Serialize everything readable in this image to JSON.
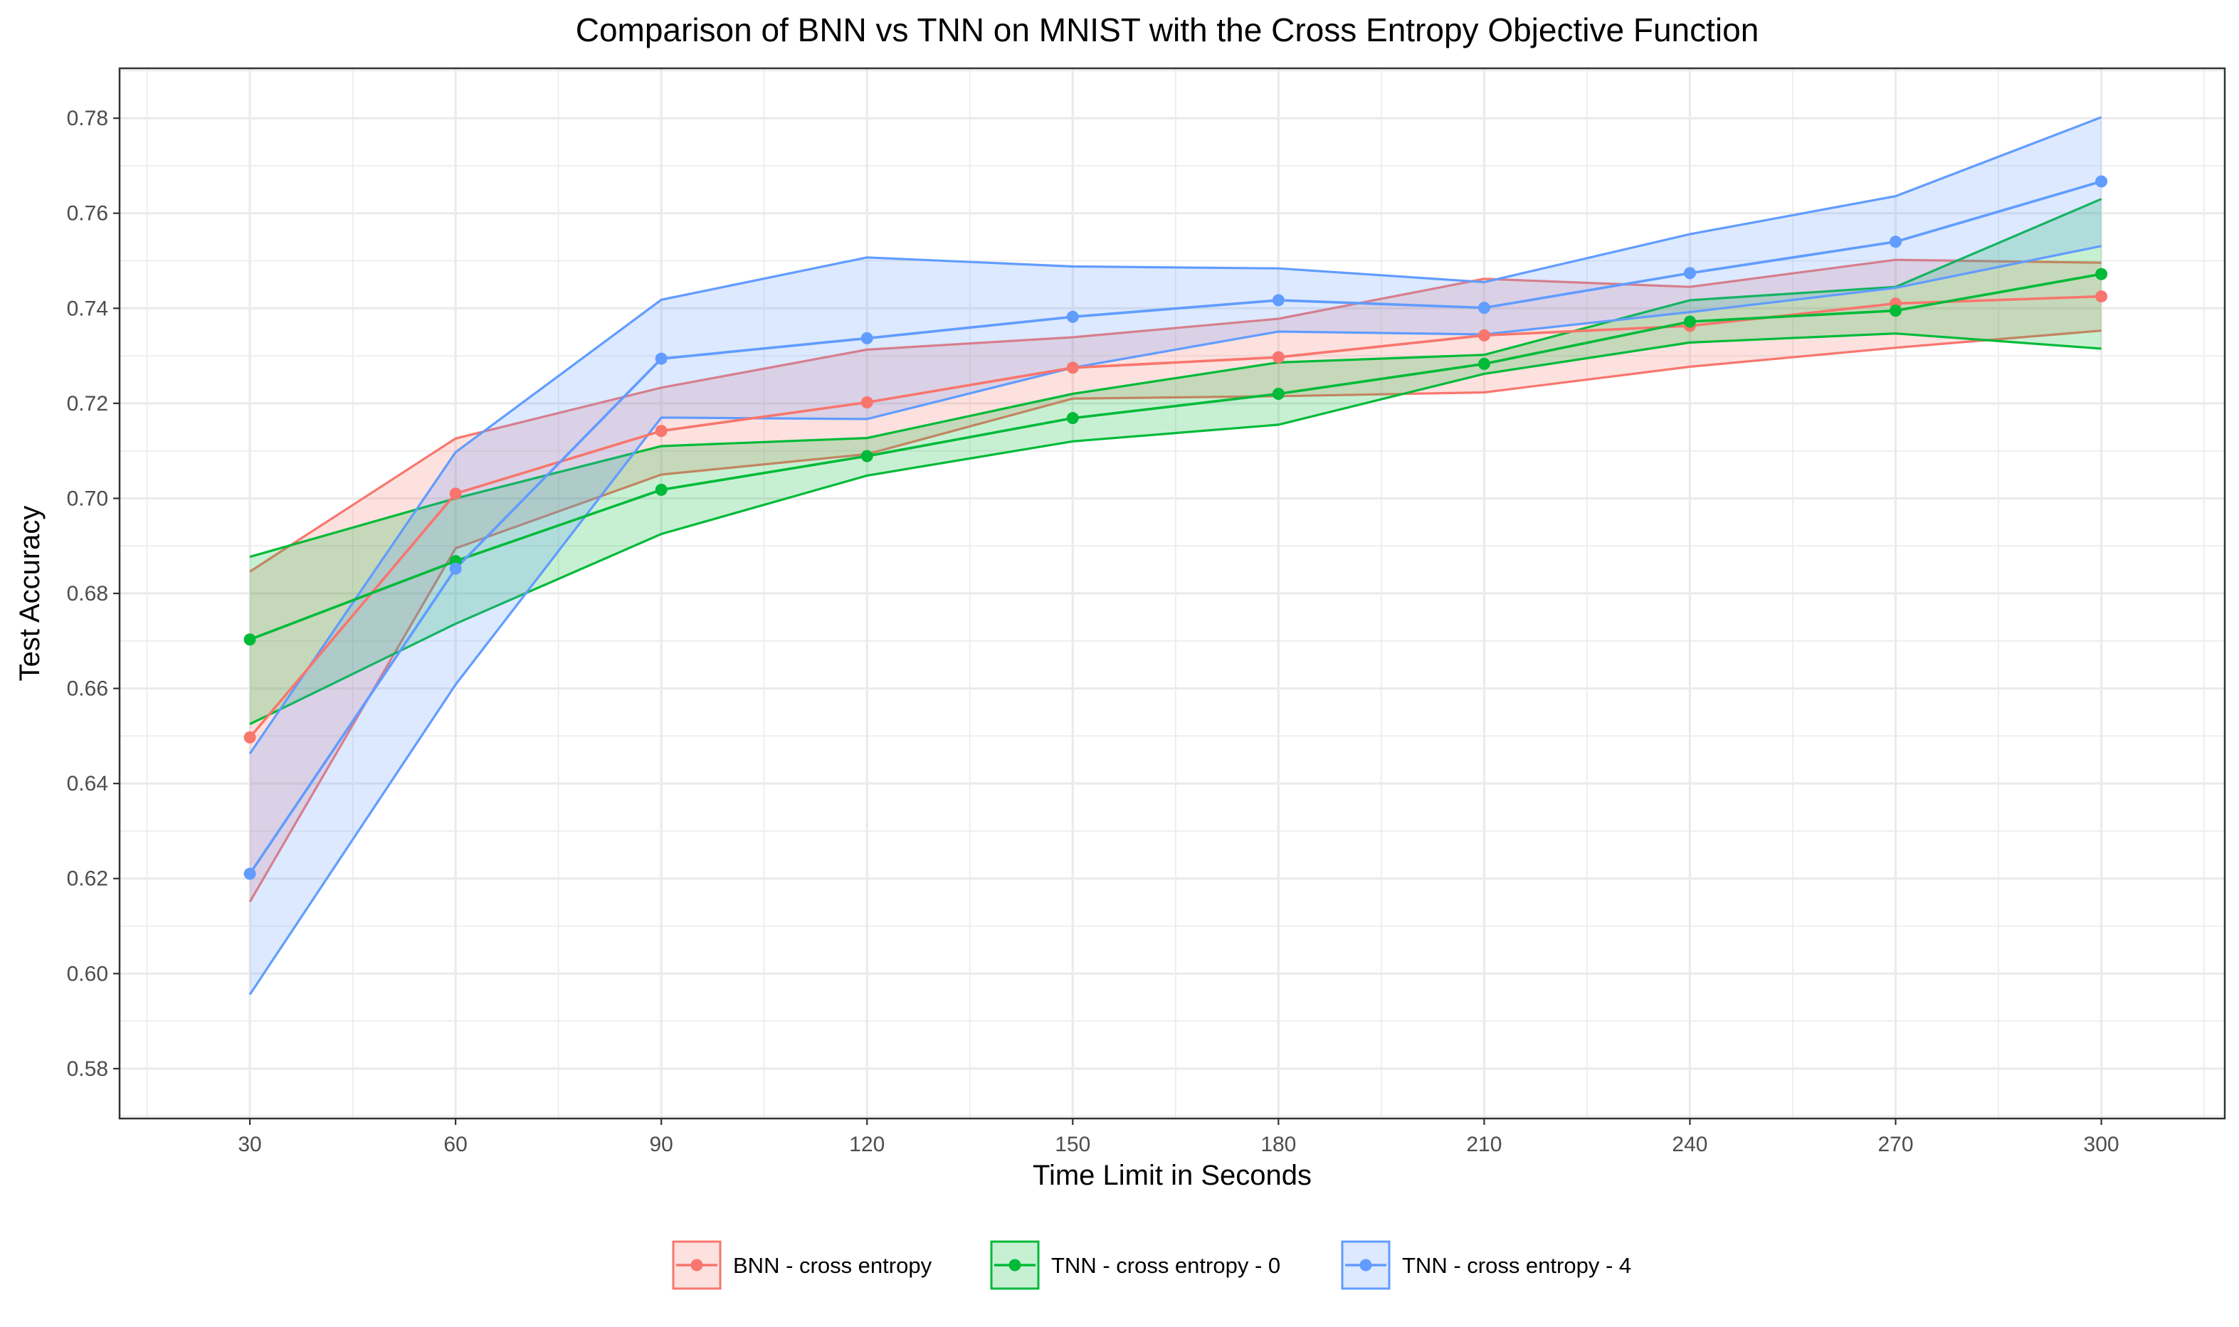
{
  "chart_data": {
    "type": "line",
    "title": "Comparison of BNN vs TNN on MNIST with the Cross Entropy Objective Function",
    "xlabel": "Time Limit in Seconds",
    "ylabel": "Test Accuracy",
    "x": [
      30,
      60,
      90,
      120,
      150,
      180,
      210,
      240,
      270,
      300
    ],
    "xticks": [
      30,
      60,
      90,
      120,
      150,
      180,
      210,
      240,
      270,
      300
    ],
    "xticklabels": [
      "30",
      "60",
      "90",
      "120",
      "150",
      "180",
      "210",
      "240",
      "270",
      "300"
    ],
    "yticks": [
      0.58,
      0.6,
      0.62,
      0.64,
      0.66,
      0.68,
      0.7,
      0.72,
      0.74,
      0.76,
      0.78
    ],
    "yticklabels": [
      "0.58",
      "0.60",
      "0.62",
      "0.64",
      "0.66",
      "0.68",
      "0.70",
      "0.72",
      "0.74",
      "0.76",
      "0.78"
    ],
    "xlim": [
      11,
      318
    ],
    "ylim": [
      0.5695,
      0.7905
    ],
    "grid": true,
    "legend_position": "bottom",
    "series": [
      {
        "name": "BNN - cross entropy",
        "color": "#F8766D",
        "mean": [
          0.6497,
          0.701,
          0.7142,
          0.7202,
          0.7275,
          0.7297,
          0.7343,
          0.7363,
          0.741,
          0.7425
        ],
        "upper": [
          0.6846,
          0.7126,
          0.7233,
          0.7313,
          0.7339,
          0.7378,
          0.7462,
          0.7445,
          0.7502,
          0.7496
        ],
        "lower": [
          0.6151,
          0.6895,
          0.705,
          0.7093,
          0.721,
          0.7215,
          0.7223,
          0.7277,
          0.7317,
          0.7353
        ]
      },
      {
        "name": "TNN - cross entropy - 0",
        "color": "#00BA38",
        "mean": [
          0.6703,
          0.6868,
          0.7018,
          0.7089,
          0.7169,
          0.722,
          0.7283,
          0.7372,
          0.7395,
          0.7472
        ],
        "upper": [
          0.6877,
          0.7,
          0.711,
          0.7127,
          0.722,
          0.7286,
          0.7302,
          0.7417,
          0.7445,
          0.763
        ],
        "lower": [
          0.6525,
          0.6736,
          0.6925,
          0.7048,
          0.712,
          0.7155,
          0.7262,
          0.7328,
          0.7347,
          0.7315
        ]
      },
      {
        "name": "TNN - cross entropy - 4",
        "color": "#619CFF",
        "mean": [
          0.621,
          0.6852,
          0.7294,
          0.7337,
          0.7382,
          0.7417,
          0.7401,
          0.7474,
          0.754,
          0.7667
        ],
        "upper": [
          0.6463,
          0.7097,
          0.7418,
          0.7507,
          0.7488,
          0.7484,
          0.7455,
          0.7556,
          0.7636,
          0.7802
        ],
        "lower": [
          0.5956,
          0.6608,
          0.717,
          0.7167,
          0.7275,
          0.7351,
          0.7345,
          0.7392,
          0.7443,
          0.7531
        ]
      }
    ]
  }
}
